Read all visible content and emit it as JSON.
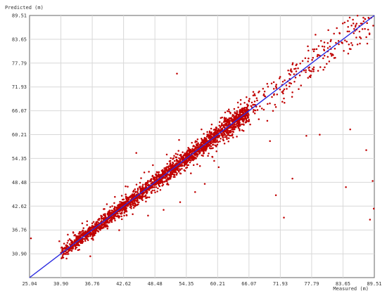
{
  "chart_data": {
    "type": "scatter",
    "xlabel": "Measured (m)",
    "ylabel": "Predicted (m)",
    "xlim": [
      25.04,
      89.51
    ],
    "ylim": [
      25.04,
      89.51
    ],
    "x_ticks": [
      "25.04",
      "30.90",
      "36.76",
      "42.62",
      "48.48",
      "54.35",
      "60.21",
      "66.07",
      "71.93",
      "77.79",
      "83.65",
      "89.51"
    ],
    "y_ticks": [
      "30.90",
      "36.76",
      "42.62",
      "48.48",
      "54.35",
      "60.21",
      "66.07",
      "71.93",
      "77.79",
      "83.65",
      "89.51"
    ],
    "grid": true,
    "reference_line": {
      "from": [
        25.04,
        25.04
      ],
      "to": [
        89.51,
        89.51
      ],
      "color": "#2a2ae0"
    },
    "point_color": "#c00000",
    "points_description_note": null,
    "dense_band": {
      "x_range": [
        30.9,
        66.07
      ],
      "deviation_sd": 0.8,
      "count": 2300
    },
    "scattered_points": [
      [
        25.3,
        34.7
      ],
      [
        30.6,
        34.0
      ],
      [
        31.5,
        33.4
      ],
      [
        33.2,
        36.2
      ],
      [
        34.1,
        31.8
      ],
      [
        35.8,
        38.9
      ],
      [
        37.2,
        35.5
      ],
      [
        38.9,
        41.9
      ],
      [
        39.6,
        37.1
      ],
      [
        41.0,
        44.9
      ],
      [
        42.3,
        39.4
      ],
      [
        43.4,
        47.4
      ],
      [
        44.8,
        42.6
      ],
      [
        45.9,
        49.5
      ],
      [
        47.1,
        44.8
      ],
      [
        45.0,
        55.7
      ],
      [
        48.1,
        52.7
      ],
      [
        49.5,
        46.6
      ],
      [
        50.7,
        55.3
      ],
      [
        51.0,
        47.9
      ],
      [
        52.6,
        75.2
      ],
      [
        53.0,
        58.9
      ],
      [
        54.1,
        51.3
      ],
      [
        55.4,
        58.2
      ],
      [
        56.0,
        46.1
      ],
      [
        57.2,
        61.5
      ],
      [
        58.4,
        55.0
      ],
      [
        59.1,
        62.7
      ],
      [
        60.0,
        56.1
      ],
      [
        60.8,
        64.3
      ],
      [
        61.5,
        58.0
      ],
      [
        62.3,
        66.4
      ],
      [
        63.1,
        59.5
      ],
      [
        64.0,
        68.1
      ],
      [
        64.8,
        61.3
      ],
      [
        65.6,
        69.4
      ],
      [
        66.3,
        62.7
      ],
      [
        67.1,
        70.2
      ],
      [
        67.9,
        64.0
      ],
      [
        68.7,
        71.5
      ],
      [
        69.5,
        63.6
      ],
      [
        70.3,
        72.8
      ],
      [
        71.1,
        67.0
      ],
      [
        71.9,
        74.4
      ],
      [
        72.6,
        69.1
      ],
      [
        73.4,
        76.0
      ],
      [
        74.2,
        70.6
      ],
      [
        75.0,
        77.5
      ],
      [
        75.8,
        72.3
      ],
      [
        76.6,
        79.0
      ],
      [
        77.4,
        74.5
      ],
      [
        78.2,
        80.7
      ],
      [
        79.0,
        75.9
      ],
      [
        79.8,
        81.9
      ],
      [
        80.6,
        77.6
      ],
      [
        81.4,
        83.5
      ],
      [
        82.2,
        79.1
      ],
      [
        83.0,
        85.2
      ],
      [
        83.8,
        80.8
      ],
      [
        84.6,
        86.7
      ],
      [
        85.4,
        82.2
      ],
      [
        86.2,
        87.5
      ],
      [
        87.0,
        83.9
      ],
      [
        87.8,
        88.6
      ],
      [
        88.6,
        85.1
      ],
      [
        89.3,
        87.0
      ],
      [
        70.0,
        58.6
      ],
      [
        76.8,
        59.9
      ],
      [
        79.3,
        60.2
      ],
      [
        85.0,
        61.5
      ],
      [
        88.0,
        56.4
      ],
      [
        84.2,
        47.3
      ],
      [
        89.2,
        48.8
      ],
      [
        89.4,
        42.0
      ],
      [
        88.7,
        39.3
      ],
      [
        74.2,
        49.4
      ],
      [
        71.1,
        45.3
      ],
      [
        72.6,
        39.8
      ],
      [
        60.4,
        52.2
      ],
      [
        57.8,
        48.1
      ],
      [
        56.4,
        52.9
      ],
      [
        53.2,
        43.6
      ],
      [
        50.1,
        41.7
      ],
      [
        47.2,
        40.3
      ],
      [
        46.5,
        50.9
      ],
      [
        43.0,
        47.5
      ],
      [
        41.8,
        36.7
      ],
      [
        39.5,
        43.1
      ],
      [
        36.4,
        30.3
      ],
      [
        34.9,
        38.4
      ],
      [
        32.2,
        35.6
      ],
      [
        31.0,
        29.8
      ],
      [
        82.5,
        86.4
      ],
      [
        86.8,
        84.2
      ],
      [
        88.2,
        82.6
      ],
      [
        84.9,
        89.0
      ],
      [
        80.9,
        85.9
      ],
      [
        77.1,
        78.2
      ],
      [
        73.8,
        74.9
      ],
      [
        69.0,
        70.8
      ],
      [
        66.8,
        67.5
      ],
      [
        65.2,
        64.9
      ]
    ],
    "seed": 12345
  }
}
